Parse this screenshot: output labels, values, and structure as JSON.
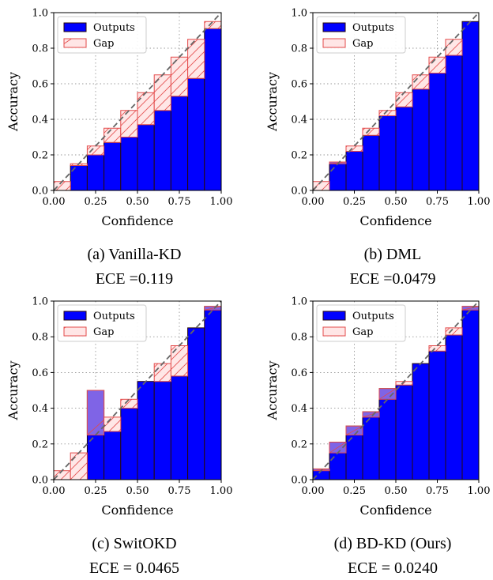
{
  "chart_data": [
    {
      "type": "bar",
      "caption": "(a) Vanilla-KD",
      "ece": "ECE =0.119",
      "xlabel": "Confidence",
      "ylabel": "Accuracy",
      "xlim": [
        0,
        1
      ],
      "ylim": [
        0,
        1
      ],
      "xticks": [
        "0.00",
        "0.25",
        "0.50",
        "0.75",
        "1.00"
      ],
      "yticks": [
        "0.0",
        "0.2",
        "0.4",
        "0.6",
        "0.8",
        "1.0"
      ],
      "bin_edges": [
        0.0,
        0.1,
        0.2,
        0.3,
        0.4,
        0.5,
        0.6,
        0.7,
        0.8,
        0.9,
        1.0
      ],
      "series": [
        {
          "name": "Outputs",
          "values": [
            0.0,
            0.14,
            0.2,
            0.27,
            0.3,
            0.37,
            0.45,
            0.53,
            0.63,
            0.91
          ]
        },
        {
          "name": "Gap",
          "values": [
            0.05,
            0.15,
            0.25,
            0.35,
            0.45,
            0.55,
            0.65,
            0.75,
            0.85,
            0.95
          ]
        }
      ],
      "legend": "top-left",
      "grid": true
    },
    {
      "type": "bar",
      "caption": "(b) DML",
      "ece": "ECE =0.0479",
      "xlabel": "Confidence",
      "ylabel": "Accuracy",
      "xlim": [
        0,
        1
      ],
      "ylim": [
        0,
        1
      ],
      "xticks": [
        "0.00",
        "0.25",
        "0.50",
        "0.75",
        "1.00"
      ],
      "yticks": [
        "0.0",
        "0.2",
        "0.4",
        "0.6",
        "0.8",
        "1.0"
      ],
      "bin_edges": [
        0.0,
        0.1,
        0.2,
        0.3,
        0.4,
        0.5,
        0.6,
        0.7,
        0.8,
        0.9,
        1.0
      ],
      "series": [
        {
          "name": "Outputs",
          "values": [
            0.0,
            0.16,
            0.22,
            0.31,
            0.42,
            0.47,
            0.57,
            0.66,
            0.76,
            0.95
          ]
        },
        {
          "name": "Gap",
          "values": [
            0.05,
            0.15,
            0.25,
            0.35,
            0.45,
            0.55,
            0.65,
            0.75,
            0.85,
            0.95
          ]
        }
      ],
      "legend": "top-left",
      "grid": true
    },
    {
      "type": "bar",
      "caption": "(c) SwitOKD",
      "ece": "ECE = 0.0465",
      "xlabel": "Confidence",
      "ylabel": "Accuracy",
      "xlim": [
        0,
        1
      ],
      "ylim": [
        0,
        1
      ],
      "xticks": [
        "0.00",
        "0.25",
        "0.50",
        "0.75",
        "1.00"
      ],
      "yticks": [
        "0.0",
        "0.2",
        "0.4",
        "0.6",
        "0.8",
        "1.0"
      ],
      "bin_edges": [
        0.0,
        0.1,
        0.2,
        0.3,
        0.4,
        0.5,
        0.6,
        0.7,
        0.8,
        0.9,
        1.0
      ],
      "series": [
        {
          "name": "Outputs",
          "values": [
            0.0,
            0.0,
            0.5,
            0.27,
            0.4,
            0.55,
            0.55,
            0.58,
            0.85,
            0.97
          ]
        },
        {
          "name": "Gap",
          "values": [
            0.05,
            0.15,
            0.25,
            0.35,
            0.45,
            0.55,
            0.65,
            0.75,
            0.85,
            0.95
          ]
        }
      ],
      "legend": "top-left",
      "grid": true
    },
    {
      "type": "bar",
      "caption": "(d) BD-KD (Ours)",
      "ece": "ECE = 0.0240",
      "xlabel": "Confidence",
      "ylabel": "Accuracy",
      "xlim": [
        0,
        1
      ],
      "ylim": [
        0,
        1
      ],
      "xticks": [
        "0.00",
        "0.25",
        "0.50",
        "0.75",
        "1.00"
      ],
      "yticks": [
        "0.0",
        "0.2",
        "0.4",
        "0.6",
        "0.8",
        "1.0"
      ],
      "bin_edges": [
        0.0,
        0.1,
        0.2,
        0.3,
        0.4,
        0.5,
        0.6,
        0.7,
        0.8,
        0.9,
        1.0
      ],
      "series": [
        {
          "name": "Outputs",
          "values": [
            0.06,
            0.21,
            0.3,
            0.38,
            0.51,
            0.53,
            0.65,
            0.72,
            0.81,
            0.97
          ]
        },
        {
          "name": "Gap",
          "values": [
            0.05,
            0.15,
            0.25,
            0.35,
            0.45,
            0.55,
            0.65,
            0.75,
            0.85,
            0.95
          ]
        }
      ],
      "legend": "top-left",
      "grid": true
    }
  ],
  "colors": {
    "outputs_fill": "#0000ff",
    "outputs_edge": "#2a0a0a",
    "gap_fill": "#ffe6e6",
    "gap_edge": "#e34a4a",
    "overlap_fill": "#7f64e6",
    "diagonal": "#666666",
    "grid": "#999999"
  }
}
